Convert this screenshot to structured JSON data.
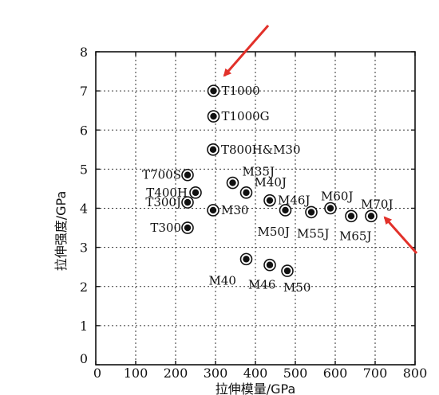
{
  "chart_data": {
    "type": "scatter",
    "xlabel": "拉伸模量/GPa",
    "ylabel": "拉伸强度/GPa",
    "xlim": [
      0,
      800
    ],
    "ylim": [
      0,
      8
    ],
    "x_ticks": [
      "0",
      "100",
      "200",
      "300",
      "400",
      "500",
      "600",
      "700",
      "800"
    ],
    "y_ticks": [
      "0",
      "1",
      "2",
      "3",
      "4",
      "5",
      "6",
      "7",
      "8"
    ],
    "grid": true,
    "points": [
      {
        "label": "T1000",
        "x": 295,
        "y": 7.0
      },
      {
        "label": "T1000G",
        "x": 295,
        "y": 6.35
      },
      {
        "label": "T800H&M30",
        "x": 294,
        "y": 5.5
      },
      {
        "label": "T700S",
        "x": 230,
        "y": 4.85
      },
      {
        "label": "T400H",
        "x": 250,
        "y": 4.4
      },
      {
        "label": "T300J",
        "x": 230,
        "y": 4.15
      },
      {
        "label": "T300",
        "x": 230,
        "y": 3.5
      },
      {
        "label": "M30",
        "x": 294,
        "y": 3.95
      },
      {
        "label": "M35J",
        "x": 343,
        "y": 4.65
      },
      {
        "label": "M40J",
        "x": 377,
        "y": 4.4
      },
      {
        "label": "M46J",
        "x": 436,
        "y": 4.2
      },
      {
        "label": "M50J",
        "x": 475,
        "y": 3.95
      },
      {
        "label": "M55J",
        "x": 540,
        "y": 3.9
      },
      {
        "label": "M60J",
        "x": 588,
        "y": 4.0
      },
      {
        "label": "M65J",
        "x": 640,
        "y": 3.8
      },
      {
        "label": "M70J",
        "x": 690,
        "y": 3.8
      },
      {
        "label": "M40",
        "x": 377,
        "y": 2.7
      },
      {
        "label": "M46",
        "x": 436,
        "y": 2.55
      },
      {
        "label": "M50",
        "x": 480,
        "y": 2.4
      }
    ],
    "annotations": [
      "red-arrow-to-T1000",
      "red-arrow-to-M70J"
    ],
    "colors": {
      "marker": "#111111",
      "arrow": "#e2312a",
      "grid": "#333333"
    }
  }
}
